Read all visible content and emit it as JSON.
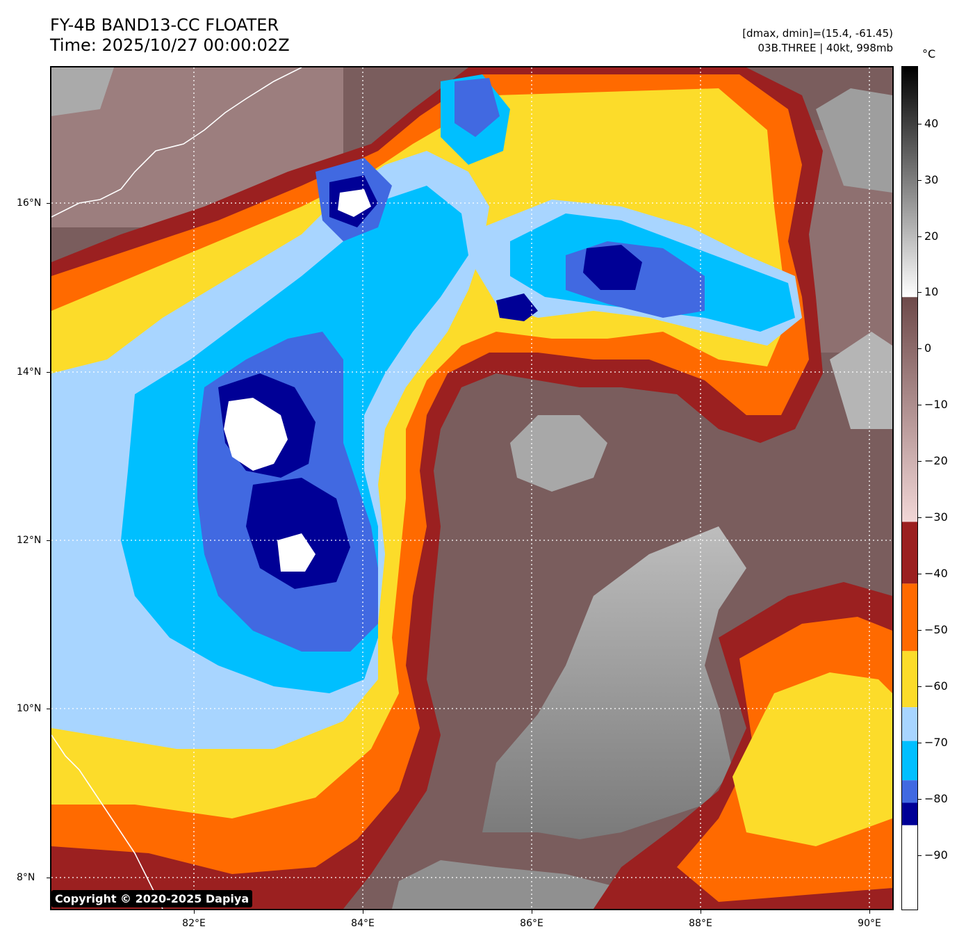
{
  "header": {
    "title_line1": "FY-4B BAND13-CC FLOATER",
    "title_line2": "Time: 2025/10/27 00:00:02Z",
    "info_line1": "[dmax, dmin]=(15.4, -61.45)",
    "info_line2": "03B.THREE | 40kt, 998mb"
  },
  "colorbar": {
    "unit": "°C",
    "ticks": [
      "40",
      "30",
      "20",
      "10",
      "0",
      "−10",
      "−20",
      "−30",
      "−40",
      "−50",
      "−60",
      "−70",
      "−80",
      "−90"
    ],
    "segments": [
      {
        "from": 50,
        "to": 9,
        "style": "gray-gradient"
      },
      {
        "from": 9,
        "to": -31,
        "style": "brown-pink-gradient"
      },
      {
        "from": -31,
        "to": -42,
        "color": "#9b2020"
      },
      {
        "from": -42,
        "to": -54,
        "color": "#ff6a00"
      },
      {
        "from": -54,
        "to": -64,
        "color": "#fcdc2a"
      },
      {
        "from": -64,
        "to": -70,
        "color": "#a8d5ff"
      },
      {
        "from": -70,
        "to": -77,
        "color": "#00bfff"
      },
      {
        "from": -77,
        "to": -81,
        "color": "#4169e1"
      },
      {
        "from": -81,
        "to": -85,
        "color": "#000096"
      },
      {
        "from": -85,
        "to": -100,
        "color": "#ffffff"
      }
    ]
  },
  "map": {
    "lon_labels": [
      "82°E",
      "84°E",
      "86°E",
      "88°E",
      "90°E"
    ],
    "lat_labels": [
      "16°N",
      "14°N",
      "12°N",
      "10°N",
      "8°N"
    ],
    "colors": {
      "warm": "#7a5d5d",
      "gray": "#9a9a9a",
      "dark_red": "#9b2020",
      "orange": "#ff6a00",
      "yellow": "#fcdc2a",
      "light_blue": "#a8d5ff",
      "sky_blue": "#00bfff",
      "royal_blue": "#4169e1",
      "navy": "#000096",
      "white": "#ffffff"
    }
  },
  "copyright": "Copyright © 2020-2025 Dapiya"
}
